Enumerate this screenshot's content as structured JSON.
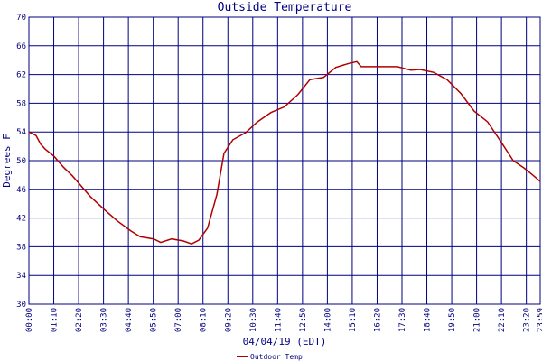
{
  "chart_data": {
    "type": "line",
    "title": "Outside Temperature",
    "y_label": "Degrees F",
    "x_label": "04/04/19 (EDT)",
    "x": [
      0,
      20,
      33,
      46,
      71,
      97,
      122,
      145,
      173,
      216,
      249,
      287,
      313,
      351,
      371,
      402,
      435,
      458,
      478,
      503,
      529,
      549,
      574,
      610,
      643,
      681,
      719,
      757,
      791,
      829,
      864,
      897,
      923,
      935,
      986,
      1037,
      1075,
      1101,
      1139,
      1177,
      1215,
      1253,
      1291,
      1329,
      1363,
      1393,
      1418,
      1439
    ],
    "series": [
      {
        "name": "Outdoor Temp",
        "color": "#b00000",
        "values": [
          54.0,
          53.5,
          52.3,
          51.6,
          50.6,
          49.1,
          47.9,
          46.6,
          45.0,
          43.0,
          41.6,
          40.2,
          39.4,
          39.1,
          38.6,
          39.1,
          38.8,
          38.4,
          38.9,
          40.6,
          45.3,
          51.0,
          52.9,
          53.9,
          55.4,
          56.7,
          57.5,
          59.2,
          61.3,
          61.6,
          63.0,
          63.5,
          63.8,
          63.1,
          63.1,
          63.1,
          62.6,
          62.7,
          62.3,
          61.3,
          59.4,
          56.9,
          55.4,
          52.6,
          50.0,
          49.0,
          48.0,
          47.1
        ]
      }
    ],
    "xlim": [
      0,
      1439
    ],
    "xticks": [
      {
        "value": 0,
        "label": "00:00"
      },
      {
        "value": 70,
        "label": "01:10"
      },
      {
        "value": 140,
        "label": "02:20"
      },
      {
        "value": 210,
        "label": "03:30"
      },
      {
        "value": 280,
        "label": "04:40"
      },
      {
        "value": 350,
        "label": "05:50"
      },
      {
        "value": 420,
        "label": "07:00"
      },
      {
        "value": 490,
        "label": "08:10"
      },
      {
        "value": 560,
        "label": "09:20"
      },
      {
        "value": 630,
        "label": "10:30"
      },
      {
        "value": 700,
        "label": "11:40"
      },
      {
        "value": 770,
        "label": "12:50"
      },
      {
        "value": 840,
        "label": "14:00"
      },
      {
        "value": 910,
        "label": "15:10"
      },
      {
        "value": 980,
        "label": "16:20"
      },
      {
        "value": 1050,
        "label": "17:30"
      },
      {
        "value": 1120,
        "label": "18:40"
      },
      {
        "value": 1190,
        "label": "19:50"
      },
      {
        "value": 1260,
        "label": "21:00"
      },
      {
        "value": 1330,
        "label": "22:10"
      },
      {
        "value": 1400,
        "label": "23:20"
      },
      {
        "value": 1439,
        "label": "23:59"
      }
    ],
    "ylim": [
      30,
      70
    ],
    "yticks": [
      30,
      34,
      38,
      42,
      46,
      50,
      54,
      58,
      62,
      66,
      70
    ],
    "grid": true,
    "grid_color": "#000080"
  }
}
